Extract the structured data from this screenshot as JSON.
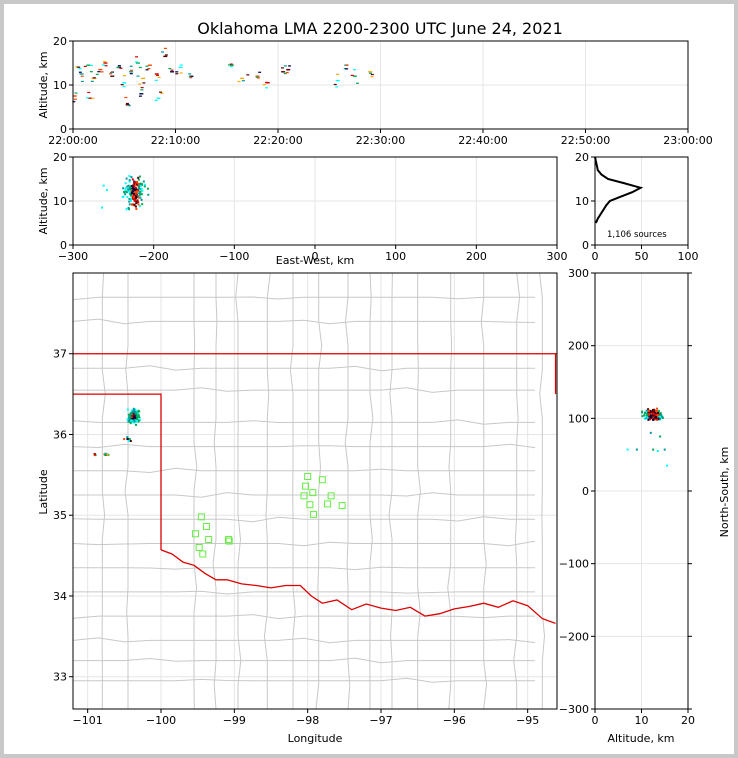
{
  "title": "Oklahoma LMA 2200-2300 UTC June 24, 2021",
  "colors": {
    "state_border": "#dd0000",
    "county_border": "#c8c8c8",
    "grid": "#e6e6e6",
    "stations": "#66ee44",
    "altitude_histogram": "#000000",
    "source_colors": [
      "#00ffff",
      "#009999",
      "#00aa55",
      "#ffaa00",
      "#ff4400",
      "#cc0000",
      "#550000",
      "#000044"
    ]
  },
  "chart_data": [
    {
      "id": "time_altitude",
      "type": "scatter",
      "ylabel": "Altitude, km",
      "ylim": [
        0,
        20
      ],
      "yticks": [
        0,
        10,
        20
      ],
      "xlim": [
        "22:00:00",
        "23:00:00"
      ],
      "xticks": [
        "22:00:00",
        "22:10:00",
        "22:20:00",
        "22:30:00",
        "22:40:00",
        "22:50:00",
        "23:00:00"
      ],
      "points": [
        {
          "x": "22:00:30",
          "y": 14.0
        },
        {
          "x": "22:00:50",
          "y": 12.5
        },
        {
          "x": "22:01:30",
          "y": 14.5
        },
        {
          "x": "22:02:00",
          "y": 11.5
        },
        {
          "x": "22:02:40",
          "y": 13.5
        },
        {
          "x": "22:03:10",
          "y": 15.0
        },
        {
          "x": "22:03:50",
          "y": 12.0
        },
        {
          "x": "22:04:30",
          "y": 14.0
        },
        {
          "x": "22:05:00",
          "y": 10.5
        },
        {
          "x": "22:05:40",
          "y": 13.0
        },
        {
          "x": "22:06:20",
          "y": 15.0
        },
        {
          "x": "22:06:50",
          "y": 11.5
        },
        {
          "x": "22:07:30",
          "y": 14.5
        },
        {
          "x": "22:08:10",
          "y": 12.5
        },
        {
          "x": "22:09:00",
          "y": 16.5
        },
        {
          "x": "22:09:40",
          "y": 13.0
        },
        {
          "x": "22:10:30",
          "y": 14.0
        },
        {
          "x": "22:11:30",
          "y": 12.0
        },
        {
          "x": "22:15:30",
          "y": 14.5
        },
        {
          "x": "22:16:30",
          "y": 11.5
        },
        {
          "x": "22:18:00",
          "y": 12.0
        },
        {
          "x": "22:19:00",
          "y": 10.5
        },
        {
          "x": "22:20:30",
          "y": 13.0
        },
        {
          "x": "22:21:00",
          "y": 13.5
        },
        {
          "x": "22:25:50",
          "y": 11.0
        },
        {
          "x": "22:26:40",
          "y": 14.5
        },
        {
          "x": "22:27:30",
          "y": 12.0
        },
        {
          "x": "22:29:00",
          "y": 13.0
        },
        {
          "x": "22:00:10",
          "y": 7.5
        },
        {
          "x": "22:01:40",
          "y": 7.0
        },
        {
          "x": "22:05:20",
          "y": 5.5
        },
        {
          "x": "22:06:40",
          "y": 8.0
        },
        {
          "x": "22:08:20",
          "y": 7.0
        }
      ]
    },
    {
      "id": "ew_altitude",
      "type": "scatter",
      "xlabel": "East-West, km",
      "ylabel": "Altitude, km",
      "xlim": [
        -300,
        300
      ],
      "xticks": [
        -300,
        -200,
        -100,
        0,
        100,
        200,
        300
      ],
      "ylim": [
        0,
        20
      ],
      "yticks": [
        0,
        10,
        20
      ],
      "cluster": {
        "x_center": -223,
        "x_spread": 9,
        "y_center": 12,
        "y_spread": 4,
        "y_min": 6,
        "y_max": 18
      },
      "outliers": [
        {
          "x": -262,
          "y": 13.5
        },
        {
          "x": -258,
          "y": 12.5
        },
        {
          "x": -264,
          "y": 8.5
        }
      ]
    },
    {
      "id": "altitude_histogram",
      "type": "line",
      "xlim": [
        0,
        100
      ],
      "xticks": [
        0,
        50,
        100
      ],
      "ylim": [
        0,
        20
      ],
      "yticks": [
        0,
        10,
        20
      ],
      "annotation": "1,106 sources",
      "profile": [
        {
          "alt": 5.0,
          "count": 1
        },
        {
          "alt": 6.0,
          "count": 3
        },
        {
          "alt": 7.0,
          "count": 6
        },
        {
          "alt": 8.0,
          "count": 9
        },
        {
          "alt": 9.0,
          "count": 12
        },
        {
          "alt": 10.0,
          "count": 16
        },
        {
          "alt": 11.0,
          "count": 28
        },
        {
          "alt": 12.0,
          "count": 40
        },
        {
          "alt": 13.0,
          "count": 49
        },
        {
          "alt": 14.0,
          "count": 32
        },
        {
          "alt": 15.0,
          "count": 14
        },
        {
          "alt": 16.0,
          "count": 7
        },
        {
          "alt": 17.0,
          "count": 3
        },
        {
          "alt": 18.0,
          "count": 2
        },
        {
          "alt": 19.0,
          "count": 1
        },
        {
          "alt": 20.0,
          "count": 0
        }
      ]
    },
    {
      "id": "plan_map",
      "type": "scatter",
      "xlabel": "Longitude",
      "ylabel": "Latitude",
      "xlim": [
        -101.2,
        -94.6
      ],
      "xticks": [
        -101,
        -100,
        -99,
        -98,
        -97,
        -96,
        -95
      ],
      "ylim": [
        32.6,
        38.0
      ],
      "yticks": [
        33,
        34,
        35,
        36,
        37
      ],
      "main_cluster": {
        "lon": -100.37,
        "lat": 36.22,
        "lon_spread": 0.08,
        "lat_spread": 0.08
      },
      "secondary_clusters": [
        {
          "lon": -100.45,
          "lat": 35.95,
          "lon_spread": 0.05,
          "lat_spread": 0.03
        },
        {
          "lon": -100.75,
          "lat": 35.75,
          "lon_spread": 0.05,
          "lat_spread": 0.01
        },
        {
          "lon": -100.9,
          "lat": 35.75,
          "lon_spread": 0.01,
          "lat_spread": 0.01
        }
      ],
      "stations": [
        {
          "lon": -99.45,
          "lat": 34.98
        },
        {
          "lon": -99.38,
          "lat": 34.86
        },
        {
          "lon": -99.53,
          "lat": 34.77
        },
        {
          "lon": -99.35,
          "lat": 34.7
        },
        {
          "lon": -99.48,
          "lat": 34.6
        },
        {
          "lon": -99.43,
          "lat": 34.52
        },
        {
          "lon": -99.08,
          "lat": 34.7
        },
        {
          "lon": -99.07,
          "lat": 34.68
        },
        {
          "lon": -98.0,
          "lat": 35.48
        },
        {
          "lon": -98.03,
          "lat": 35.36
        },
        {
          "lon": -97.93,
          "lat": 35.28
        },
        {
          "lon": -98.05,
          "lat": 35.24
        },
        {
          "lon": -97.97,
          "lat": 35.13
        },
        {
          "lon": -97.92,
          "lat": 35.01
        },
        {
          "lon": -97.8,
          "lat": 35.44
        },
        {
          "lon": -97.68,
          "lat": 35.24
        },
        {
          "lon": -97.73,
          "lat": 35.14
        },
        {
          "lon": -97.53,
          "lat": 35.12
        }
      ]
    },
    {
      "id": "altitude_ns",
      "type": "scatter",
      "xlabel": "Altitude, km",
      "ylabel": "North-South, km",
      "xlim": [
        0,
        20
      ],
      "xticks": [
        0,
        10,
        20
      ],
      "ylim": [
        -300,
        300
      ],
      "yticks": [
        -300,
        -200,
        -100,
        0,
        100,
        200,
        300
      ],
      "cluster": {
        "alt_center": 12.5,
        "alt_spread": 2.6,
        "ns_center": 105,
        "ns_spread": 7
      },
      "outliers": [
        {
          "alt": 7.0,
          "ns": 57
        },
        {
          "alt": 9.0,
          "ns": 57
        },
        {
          "alt": 12.5,
          "ns": 57
        },
        {
          "alt": 13.5,
          "ns": 55
        },
        {
          "alt": 15.0,
          "ns": 57
        },
        {
          "alt": 14.0,
          "ns": 75
        },
        {
          "alt": 15.5,
          "ns": 35
        },
        {
          "alt": 12.0,
          "ns": 80
        }
      ]
    }
  ]
}
